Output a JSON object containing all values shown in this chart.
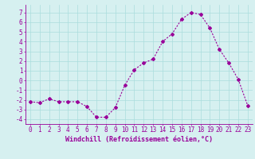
{
  "x": [
    0,
    1,
    2,
    3,
    4,
    5,
    6,
    7,
    8,
    9,
    10,
    11,
    12,
    13,
    14,
    15,
    16,
    17,
    18,
    19,
    20,
    21,
    22,
    23
  ],
  "y": [
    -2.2,
    -2.3,
    -1.9,
    -2.2,
    -2.2,
    -2.2,
    -2.7,
    -3.8,
    -3.8,
    -2.8,
    -0.5,
    1.1,
    1.8,
    2.2,
    4.0,
    4.8,
    6.3,
    7.0,
    6.8,
    5.4,
    3.2,
    1.8,
    0.1,
    -2.6
  ],
  "line_color": "#990099",
  "marker": "D",
  "marker_size": 2.0,
  "bg_color": "#d6f0f0",
  "grid_color": "#aadddd",
  "xlabel": "Windchill (Refroidissement éolien,°C)",
  "xlabel_color": "#990099",
  "tick_color": "#990099",
  "ylim": [
    -4.5,
    7.8
  ],
  "xlim": [
    -0.5,
    23.5
  ],
  "yticks": [
    -4,
    -3,
    -2,
    -1,
    0,
    1,
    2,
    3,
    4,
    5,
    6,
    7
  ],
  "xticks": [
    0,
    1,
    2,
    3,
    4,
    5,
    6,
    7,
    8,
    9,
    10,
    11,
    12,
    13,
    14,
    15,
    16,
    17,
    18,
    19,
    20,
    21,
    22,
    23
  ],
  "spine_color": "#990099",
  "label_fontsize": 6.0,
  "tick_fontsize": 5.5,
  "linewidth": 0.8
}
